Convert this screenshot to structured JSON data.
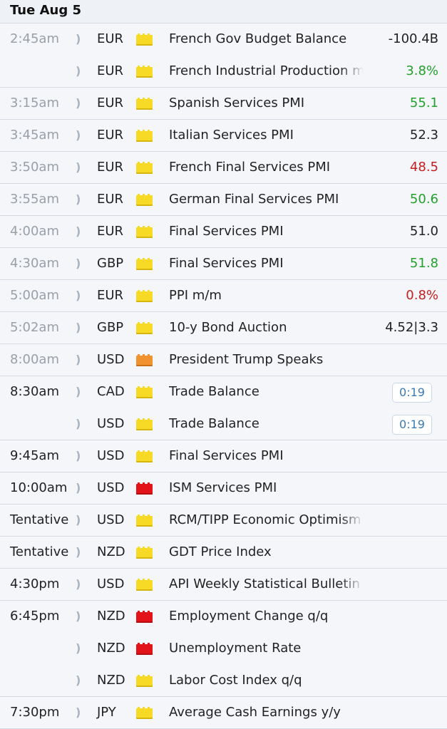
{
  "header": {
    "date": "Tue Aug 5"
  },
  "colors": {
    "low_impact": "#f6da25",
    "medium_impact": "#f0922f",
    "high_impact": "#e2141a",
    "good": "#23a02c",
    "bad": "#c41f1f"
  },
  "rows": [
    {
      "time": "2:45am",
      "past": true,
      "currency": "EUR",
      "impact": "low",
      "event": "French Gov Budget Balance",
      "actual": "-100.4B",
      "actual_status": "neutral"
    },
    {
      "time": "",
      "past": true,
      "currency": "EUR",
      "impact": "low",
      "event": "French Industrial Production m/m",
      "actual": "3.8%",
      "actual_status": "good"
    },
    {
      "time": "3:15am",
      "past": true,
      "currency": "EUR",
      "impact": "low",
      "event": "Spanish Services PMI",
      "actual": "55.1",
      "actual_status": "good"
    },
    {
      "time": "3:45am",
      "past": true,
      "currency": "EUR",
      "impact": "low",
      "event": "Italian Services PMI",
      "actual": "52.3",
      "actual_status": "neutral"
    },
    {
      "time": "3:50am",
      "past": true,
      "currency": "EUR",
      "impact": "low",
      "event": "French Final Services PMI",
      "actual": "48.5",
      "actual_status": "bad"
    },
    {
      "time": "3:55am",
      "past": true,
      "currency": "EUR",
      "impact": "low",
      "event": "German Final Services PMI",
      "actual": "50.6",
      "actual_status": "good"
    },
    {
      "time": "4:00am",
      "past": true,
      "currency": "EUR",
      "impact": "low",
      "event": "Final Services PMI",
      "actual": "51.0",
      "actual_status": "neutral"
    },
    {
      "time": "4:30am",
      "past": true,
      "currency": "GBP",
      "impact": "low",
      "event": "Final Services PMI",
      "actual": "51.8",
      "actual_status": "good"
    },
    {
      "time": "5:00am",
      "past": true,
      "currency": "EUR",
      "impact": "low",
      "event": "PPI m/m",
      "actual": "0.8%",
      "actual_status": "bad"
    },
    {
      "time": "5:02am",
      "past": true,
      "currency": "GBP",
      "impact": "low",
      "event": "10-y Bond Auction",
      "actual": "4.52|3.3",
      "actual_status": "neutral"
    },
    {
      "time": "8:00am",
      "past": true,
      "currency": "USD",
      "impact": "medium",
      "event": "President Trump Speaks",
      "actual": "",
      "actual_status": "neutral"
    },
    {
      "time": "8:30am",
      "past": false,
      "currency": "CAD",
      "impact": "low",
      "event": "Trade Balance",
      "actual": "",
      "countdown": "0:19"
    },
    {
      "time": "",
      "past": false,
      "currency": "USD",
      "impact": "low",
      "event": "Trade Balance",
      "actual": "",
      "countdown": "0:19"
    },
    {
      "time": "9:45am",
      "past": false,
      "currency": "USD",
      "impact": "low",
      "event": "Final Services PMI",
      "actual": ""
    },
    {
      "time": "10:00am",
      "past": false,
      "currency": "USD",
      "impact": "high",
      "event": "ISM Services PMI",
      "actual": ""
    },
    {
      "time": "Tentative",
      "past": false,
      "currency": "USD",
      "impact": "low",
      "event": "RCM/TIPP Economic Optimism",
      "actual": ""
    },
    {
      "time": "Tentative",
      "past": false,
      "currency": "NZD",
      "impact": "low",
      "event": "GDT Price Index",
      "actual": ""
    },
    {
      "time": "4:30pm",
      "past": false,
      "currency": "USD",
      "impact": "low",
      "event": "API Weekly Statistical Bulletin",
      "actual": ""
    },
    {
      "time": "6:45pm",
      "past": false,
      "currency": "NZD",
      "impact": "high",
      "event": "Employment Change q/q",
      "actual": ""
    },
    {
      "time": "",
      "past": false,
      "currency": "NZD",
      "impact": "high",
      "event": "Unemployment Rate",
      "actual": ""
    },
    {
      "time": "",
      "past": false,
      "currency": "NZD",
      "impact": "low",
      "event": "Labor Cost Index q/q",
      "actual": ""
    },
    {
      "time": "7:30pm",
      "past": false,
      "currency": "JPY",
      "impact": "low",
      "event": "Average Cash Earnings y/y",
      "actual": ""
    }
  ]
}
